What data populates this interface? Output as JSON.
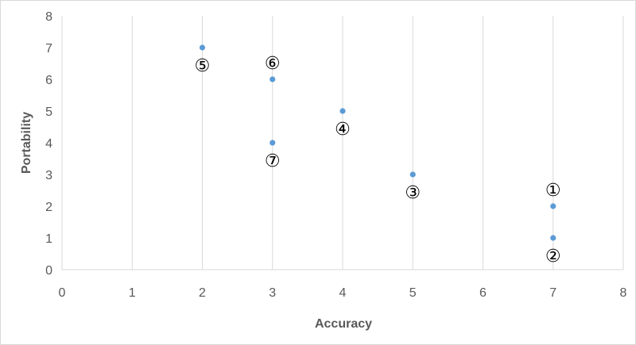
{
  "chart_data": {
    "type": "scatter",
    "title": "",
    "xlabel": "Accuracy",
    "ylabel": "Portability",
    "xlim": [
      0,
      8
    ],
    "ylim": [
      0,
      8
    ],
    "x_ticks": [
      "0",
      "1",
      "2",
      "3",
      "4",
      "5",
      "6",
      "7",
      "8"
    ],
    "y_ticks": [
      "0",
      "1",
      "2",
      "3",
      "4",
      "5",
      "6",
      "7",
      "8"
    ],
    "grid": "vertical",
    "legend": "none",
    "marker_color": "#5b9bd5",
    "points": [
      {
        "label": "①",
        "x": 7,
        "y": 2,
        "label_pos": "above"
      },
      {
        "label": "②",
        "x": 7,
        "y": 1,
        "label_pos": "below"
      },
      {
        "label": "③",
        "x": 5,
        "y": 3,
        "label_pos": "below"
      },
      {
        "label": "④",
        "x": 4,
        "y": 5,
        "label_pos": "below"
      },
      {
        "label": "⑤",
        "x": 2,
        "y": 7,
        "label_pos": "below"
      },
      {
        "label": "⑥",
        "x": 3,
        "y": 6,
        "label_pos": "above"
      },
      {
        "label": "⑦",
        "x": 3,
        "y": 4,
        "label_pos": "below"
      }
    ]
  }
}
